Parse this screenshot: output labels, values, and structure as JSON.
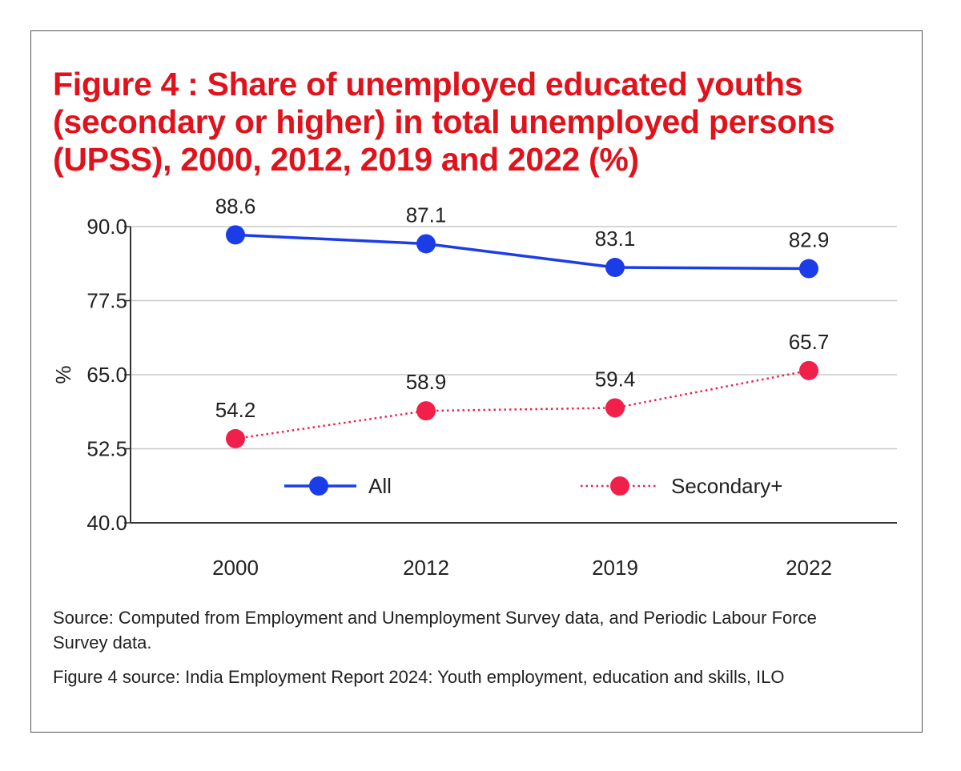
{
  "title": "Figure 4 : Share of unemployed educated youths (secondary or higher) in total unemployed persons (UPSS), 2000, 2012, 2019 and 2022 (%)",
  "colors": {
    "title": "#e0121c",
    "all": "#1b3de8",
    "secondary": "#f0204a",
    "grid": "#c8c8c8"
  },
  "chart_data": {
    "type": "line",
    "categories": [
      "2000",
      "2012",
      "2019",
      "2022"
    ],
    "series": [
      {
        "name": "All",
        "values": [
          88.6,
          87.1,
          83.1,
          82.9
        ],
        "labels": [
          "88.6",
          "87.1",
          "83.1",
          "82.9"
        ],
        "style": "solid"
      },
      {
        "name": "Secondary+",
        "values": [
          54.2,
          58.9,
          59.4,
          65.7
        ],
        "labels": [
          "54.2",
          "58.9",
          "59.4",
          "65.7"
        ],
        "style": "dotted"
      }
    ],
    "ylabel": "%",
    "yticks": [
      "90.0",
      "77.5",
      "65.0",
      "52.5",
      "40.0"
    ],
    "ylim": [
      40,
      90
    ],
    "grid": true,
    "legend_position": "bottom-inside"
  },
  "source_note": "Source: Computed from Employment and Unemployment Survey data, and Periodic Labour Force Survey data.",
  "figure_source": "Figure 4 source: India Employment Report 2024: Youth employment, education and skills, ILO"
}
